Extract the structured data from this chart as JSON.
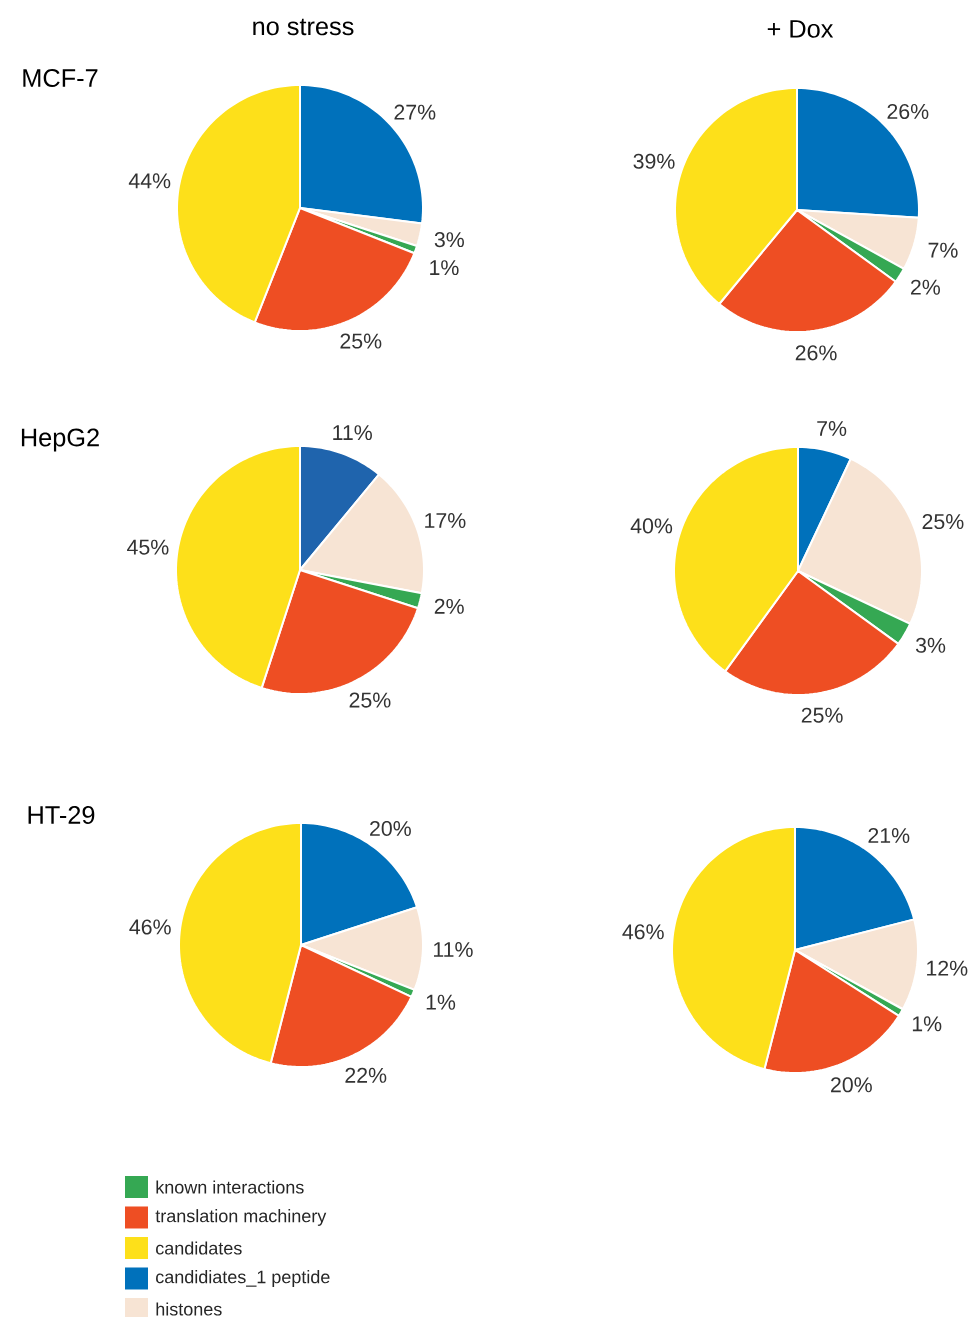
{
  "chart_data": [
    {
      "type": "pie",
      "title": "no stress",
      "annotations": [
        "MCF-7"
      ],
      "categories": [
        "known interactions",
        "translation machinery",
        "candidates",
        "candidiates_1 peptide",
        "histones"
      ],
      "values": [
        1,
        25,
        44,
        27,
        3
      ],
      "value_labels": [
        "1%",
        "25%",
        "44%",
        "27%",
        "3%"
      ],
      "colors": [
        "#35a853",
        "#ee4e23",
        "#fde01a",
        "#0071bb",
        "#f7e4d4"
      ],
      "legend": "bottom"
    },
    {
      "type": "pie",
      "title": "+ Dox",
      "values": [
        2,
        26,
        39,
        26,
        7
      ],
      "value_labels": [
        "2%",
        "26%",
        "39%",
        "26%",
        "7%"
      ],
      "colors": [
        "#35a853",
        "#ee4e23",
        "#fde01a",
        "#0071bb",
        "#f7e4d4"
      ]
    },
    {
      "type": "pie",
      "annotations": [
        "HepG2"
      ],
      "values": [
        2,
        25,
        45,
        11,
        17
      ],
      "value_labels": [
        "2%",
        "25%",
        "45%",
        "11%",
        "17%"
      ],
      "colors": [
        "#35a853",
        "#ee4e23",
        "#fde01a",
        "#1f64ad",
        "#f7e4d4"
      ]
    },
    {
      "type": "pie",
      "values": [
        3,
        25,
        40,
        7,
        25
      ],
      "value_labels": [
        "3%",
        "25%",
        "40%",
        "7%",
        "25%"
      ],
      "colors": [
        "#35a853",
        "#ee4e23",
        "#fde01a",
        "#0071bb",
        "#f7e4d4"
      ]
    },
    {
      "type": "pie",
      "annotations": [
        "HT-29"
      ],
      "values": [
        1,
        22,
        46,
        20,
        11
      ],
      "value_labels": [
        "1%",
        "22%",
        "46%",
        "20%",
        "11%"
      ],
      "colors": [
        "#35a853",
        "#ee4e23",
        "#fde01a",
        "#0071bb",
        "#f7e4d4"
      ]
    },
    {
      "type": "pie",
      "values": [
        1,
        20,
        46,
        21,
        12
      ],
      "value_labels": [
        "1%",
        "20%",
        "46%",
        "21%",
        "12%"
      ],
      "colors": [
        "#35a853",
        "#ee4e23",
        "#fde01a",
        "#0071bb",
        "#f7e4d4"
      ]
    }
  ]
}
